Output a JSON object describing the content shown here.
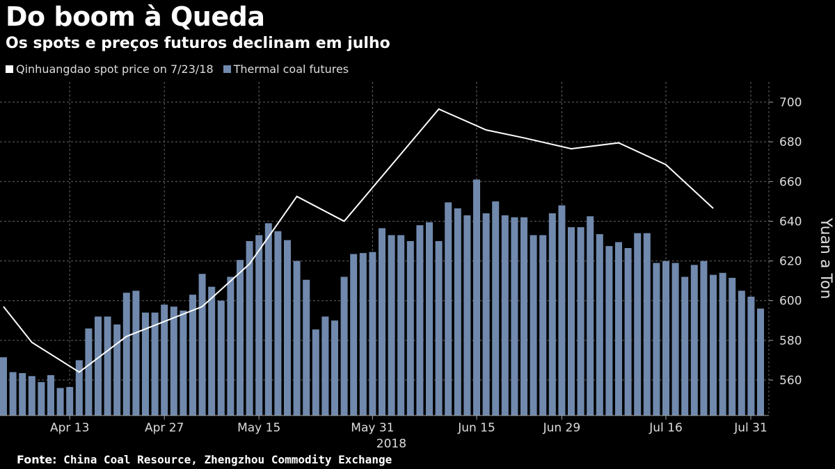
{
  "title": "Do boom à Queda",
  "subtitle": "Os spots e preços futuros declinam em julho",
  "source": {
    "label": "Fonte:",
    "text": "China Coal Resource, Zhengzhou Commodity Exchange"
  },
  "chart_data": {
    "type": "bar+line",
    "ylabel": "Yuan a Ton",
    "ylim": [
      542,
      710
    ],
    "yticks": [
      560,
      580,
      600,
      620,
      640,
      660,
      680,
      700
    ],
    "grid": true,
    "legend_position": "top-left",
    "colors": {
      "bars": "#7089ad",
      "line": "#ffffff",
      "background": "#000000",
      "grid": "#666666"
    },
    "xticks": [
      {
        "date": "2018-04-13",
        "label": "Apr 13"
      },
      {
        "date": "2018-04-27",
        "label": "Apr 27"
      },
      {
        "date": "2018-05-15",
        "label": "May 15"
      },
      {
        "date": "2018-05-31",
        "label": "May 31",
        "sublabel": "2018"
      },
      {
        "date": "2018-06-15",
        "label": "Jun 15"
      },
      {
        "date": "2018-06-29",
        "label": "Jun 29"
      },
      {
        "date": "2018-07-16",
        "label": "Jul 16"
      },
      {
        "date": "2018-07-31",
        "label": "Jul 31"
      }
    ],
    "dates": [
      "2018-04-02",
      "2018-04-03",
      "2018-04-04",
      "2018-04-09",
      "2018-04-10",
      "2018-04-11",
      "2018-04-12",
      "2018-04-13",
      "2018-04-16",
      "2018-04-17",
      "2018-04-18",
      "2018-04-19",
      "2018-04-20",
      "2018-04-23",
      "2018-04-24",
      "2018-04-25",
      "2018-04-26",
      "2018-04-27",
      "2018-05-02",
      "2018-05-03",
      "2018-05-04",
      "2018-05-07",
      "2018-05-08",
      "2018-05-09",
      "2018-05-10",
      "2018-05-11",
      "2018-05-14",
      "2018-05-15",
      "2018-05-16",
      "2018-05-17",
      "2018-05-18",
      "2018-05-21",
      "2018-05-22",
      "2018-05-23",
      "2018-05-24",
      "2018-05-25",
      "2018-05-28",
      "2018-05-29",
      "2018-05-30",
      "2018-05-31",
      "2018-06-01",
      "2018-06-04",
      "2018-06-05",
      "2018-06-06",
      "2018-06-07",
      "2018-06-08",
      "2018-06-11",
      "2018-06-12",
      "2018-06-13",
      "2018-06-14",
      "2018-06-15",
      "2018-06-19",
      "2018-06-20",
      "2018-06-21",
      "2018-06-22",
      "2018-06-25",
      "2018-06-26",
      "2018-06-27",
      "2018-06-28",
      "2018-06-29",
      "2018-07-02",
      "2018-07-03",
      "2018-07-04",
      "2018-07-05",
      "2018-07-06",
      "2018-07-09",
      "2018-07-10",
      "2018-07-11",
      "2018-07-12",
      "2018-07-13",
      "2018-07-16",
      "2018-07-17",
      "2018-07-18",
      "2018-07-19",
      "2018-07-20",
      "2018-07-23",
      "2018-07-24",
      "2018-07-25",
      "2018-07-26",
      "2018-07-27",
      "2018-07-31"
    ],
    "series": [
      {
        "name": "Thermal coal futures",
        "type": "bar",
        "values": [
          571.5,
          564,
          563.5,
          562,
          559,
          562.5,
          556,
          556.5,
          570,
          586,
          592,
          592,
          588,
          604,
          605,
          594,
          594,
          598,
          597,
          595,
          603,
          613.5,
          607,
          600,
          612,
          620.5,
          630,
          633,
          639,
          635,
          630.5,
          620,
          610.5,
          585.5,
          592,
          590,
          612,
          623.5,
          624,
          624.5,
          636.5,
          633,
          633,
          630,
          638,
          639.5,
          630,
          649.5,
          646.5,
          643,
          661,
          644,
          650,
          643,
          642,
          642,
          633,
          633,
          644,
          648,
          637,
          637,
          642.5,
          633.5,
          627.5,
          629.5,
          626.5,
          634,
          634,
          619,
          620,
          619,
          612,
          618,
          620,
          613,
          614,
          611.5,
          605,
          602,
          596
        ]
      },
      {
        "name": "Qinhuangdao spot price on 7/23/18",
        "type": "line",
        "points": [
          {
            "date": "2018-04-02",
            "value": 597
          },
          {
            "date": "2018-04-09",
            "value": 579
          },
          {
            "date": "2018-04-16",
            "value": 564
          },
          {
            "date": "2018-04-23",
            "value": 582
          },
          {
            "date": "2018-05-07",
            "value": 597
          },
          {
            "date": "2018-05-14",
            "value": 618.5
          },
          {
            "date": "2018-05-21",
            "value": 652.5
          },
          {
            "date": "2018-05-28",
            "value": 640
          },
          {
            "date": "2018-06-11",
            "value": 696.5
          },
          {
            "date": "2018-06-19",
            "value": 686
          },
          {
            "date": "2018-06-25",
            "value": 682
          },
          {
            "date": "2018-07-02",
            "value": 676.5
          },
          {
            "date": "2018-07-09",
            "value": 679.5
          },
          {
            "date": "2018-07-16",
            "value": 668.5
          },
          {
            "date": "2018-07-23",
            "value": 646.5
          }
        ]
      }
    ]
  }
}
